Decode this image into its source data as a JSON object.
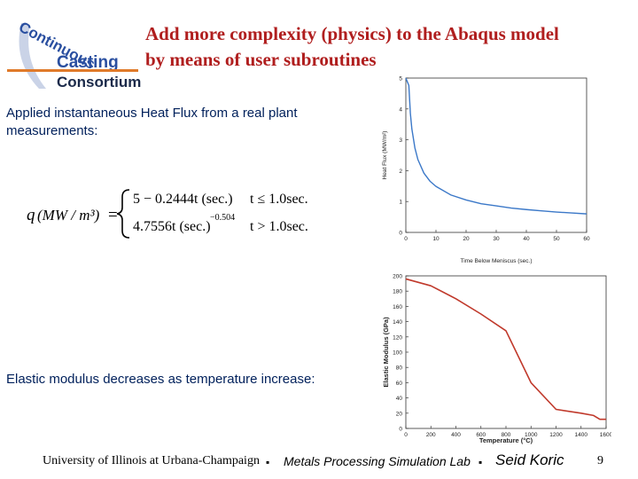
{
  "header": {
    "title_line1": "Add more complexity (physics) to the Abaqus model",
    "title_line2": "by means of user subroutines",
    "logo": {
      "words": [
        "Continuous",
        "Casting",
        "Consortium"
      ],
      "colors": {
        "blue": "#2a4fa0",
        "orange": "#e07a2a",
        "dark": "#1b2a4a"
      }
    }
  },
  "body": {
    "heat_flux_text": "Applied instantaneous Heat Flux from a  real plant measurements:",
    "modulus_text": "Elastic modulus decreases as temperature increase:",
    "equation": {
      "lhs": "q",
      "lhs_units": "(MW / m³)",
      "case1_expr": "5 − 0.2444t (sec.)",
      "case1_cond": "t ≤ 1.0sec.",
      "case2_expr": "4.7556t (sec.)",
      "case2_exponent": "−0.504",
      "case2_cond": "t > 1.0sec."
    }
  },
  "chart_data": [
    {
      "type": "line",
      "title": "",
      "xlabel": "Time Below Meniscus (sec.)",
      "ylabel": "Heat Flux (MW/m²)",
      "xlim": [
        0,
        60
      ],
      "ylim": [
        0,
        5
      ],
      "xticks": [
        0,
        10,
        20,
        30,
        40,
        50,
        60
      ],
      "yticks": [
        0,
        1,
        2,
        3,
        4,
        5
      ],
      "grid": false,
      "color": "#3b78c8",
      "series": [
        {
          "x": [
            0,
            0.25,
            0.5,
            0.75,
            1,
            1.5,
            2,
            3,
            4,
            6,
            8,
            10,
            15,
            20,
            25,
            30,
            35,
            40,
            45,
            50,
            55,
            60
          ],
          "y": [
            5,
            4.94,
            4.88,
            4.82,
            4.76,
            3.86,
            3.35,
            2.74,
            2.36,
            1.92,
            1.66,
            1.49,
            1.21,
            1.05,
            0.93,
            0.86,
            0.79,
            0.74,
            0.7,
            0.66,
            0.63,
            0.6
          ]
        }
      ]
    },
    {
      "type": "line",
      "title": "",
      "xlabel": "Temperature (°C)",
      "ylabel": "Elastic Modulus (GPa)",
      "xlim": [
        0,
        1600
      ],
      "ylim": [
        0,
        200
      ],
      "xticks": [
        0,
        200,
        400,
        600,
        800,
        1000,
        1200,
        1400,
        1600
      ],
      "yticks": [
        0,
        20,
        40,
        60,
        80,
        100,
        120,
        140,
        160,
        180,
        200
      ],
      "grid": false,
      "color": "#c0392b",
      "series": [
        {
          "x": [
            0,
            200,
            400,
            600,
            800,
            1000,
            1200,
            1400,
            1500,
            1550,
            1600
          ],
          "y": [
            196,
            187,
            170,
            150,
            128,
            60,
            25,
            20,
            17,
            12,
            12
          ]
        }
      ]
    }
  ],
  "footer": {
    "university": "University of Illinois at Urbana-Champaign",
    "separator": "▪",
    "lab": "Metals Processing Simulation Lab",
    "author": "Seid Koric",
    "page": "9"
  }
}
